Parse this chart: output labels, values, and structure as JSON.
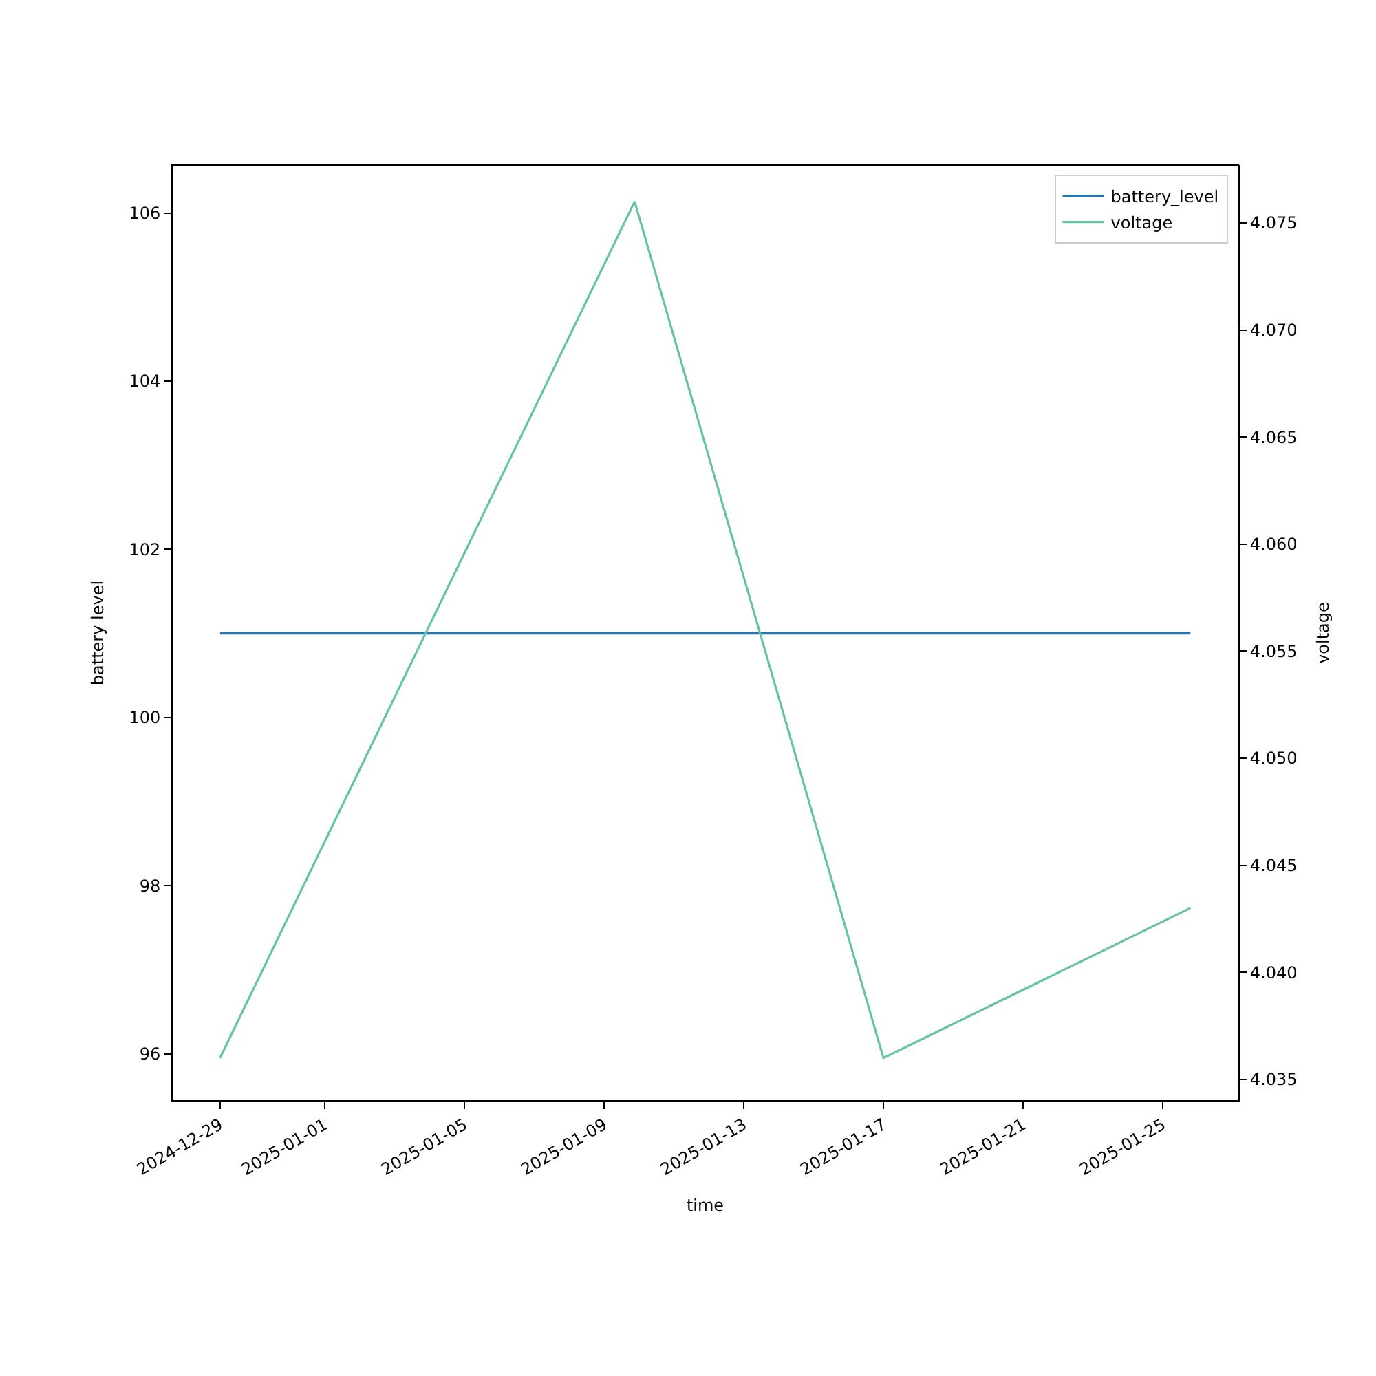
{
  "chart_data": {
    "type": "line",
    "xlabel": "time",
    "ylabel": "battery level",
    "y2label": "voltage",
    "x": [
      "2024-12-29",
      "2025-01-09T21:00",
      "2025-01-17",
      "2025-01-25T19:00"
    ],
    "series": [
      {
        "name": "battery_level",
        "color": "#1f77b4",
        "values": [
          101,
          101,
          101,
          101
        ]
      },
      {
        "name": "voltage",
        "color": "#66c2a5",
        "values": [
          4.036,
          4.076,
          4.036,
          4.043
        ],
        "axis": "y2"
      }
    ],
    "xlim": [
      "2024-12-27T15:00",
      "2025-01-27T04:00"
    ],
    "xticks": [
      "2024-12-29",
      "2025-01-01",
      "2025-01-05",
      "2025-01-09",
      "2025-01-13",
      "2025-01-17",
      "2025-01-21",
      "2025-01-25"
    ],
    "ylim": [
      95.44,
      106.57
    ],
    "yticks": [
      96,
      98,
      100,
      102,
      104,
      106
    ],
    "y2lim": [
      4.034,
      4.0777
    ],
    "y2ticks": [
      4.035,
      {
        "value": 4.04,
        "label": "4.040"
      },
      4.045,
      {
        "value": 4.05,
        "label": "4.050"
      },
      4.055,
      {
        "value": 4.06,
        "label": "4.060"
      },
      4.065,
      {
        "value": 4.07,
        "label": "4.070"
      },
      4.075
    ],
    "legend": "top right",
    "marker": "none",
    "line_style": "solid"
  }
}
